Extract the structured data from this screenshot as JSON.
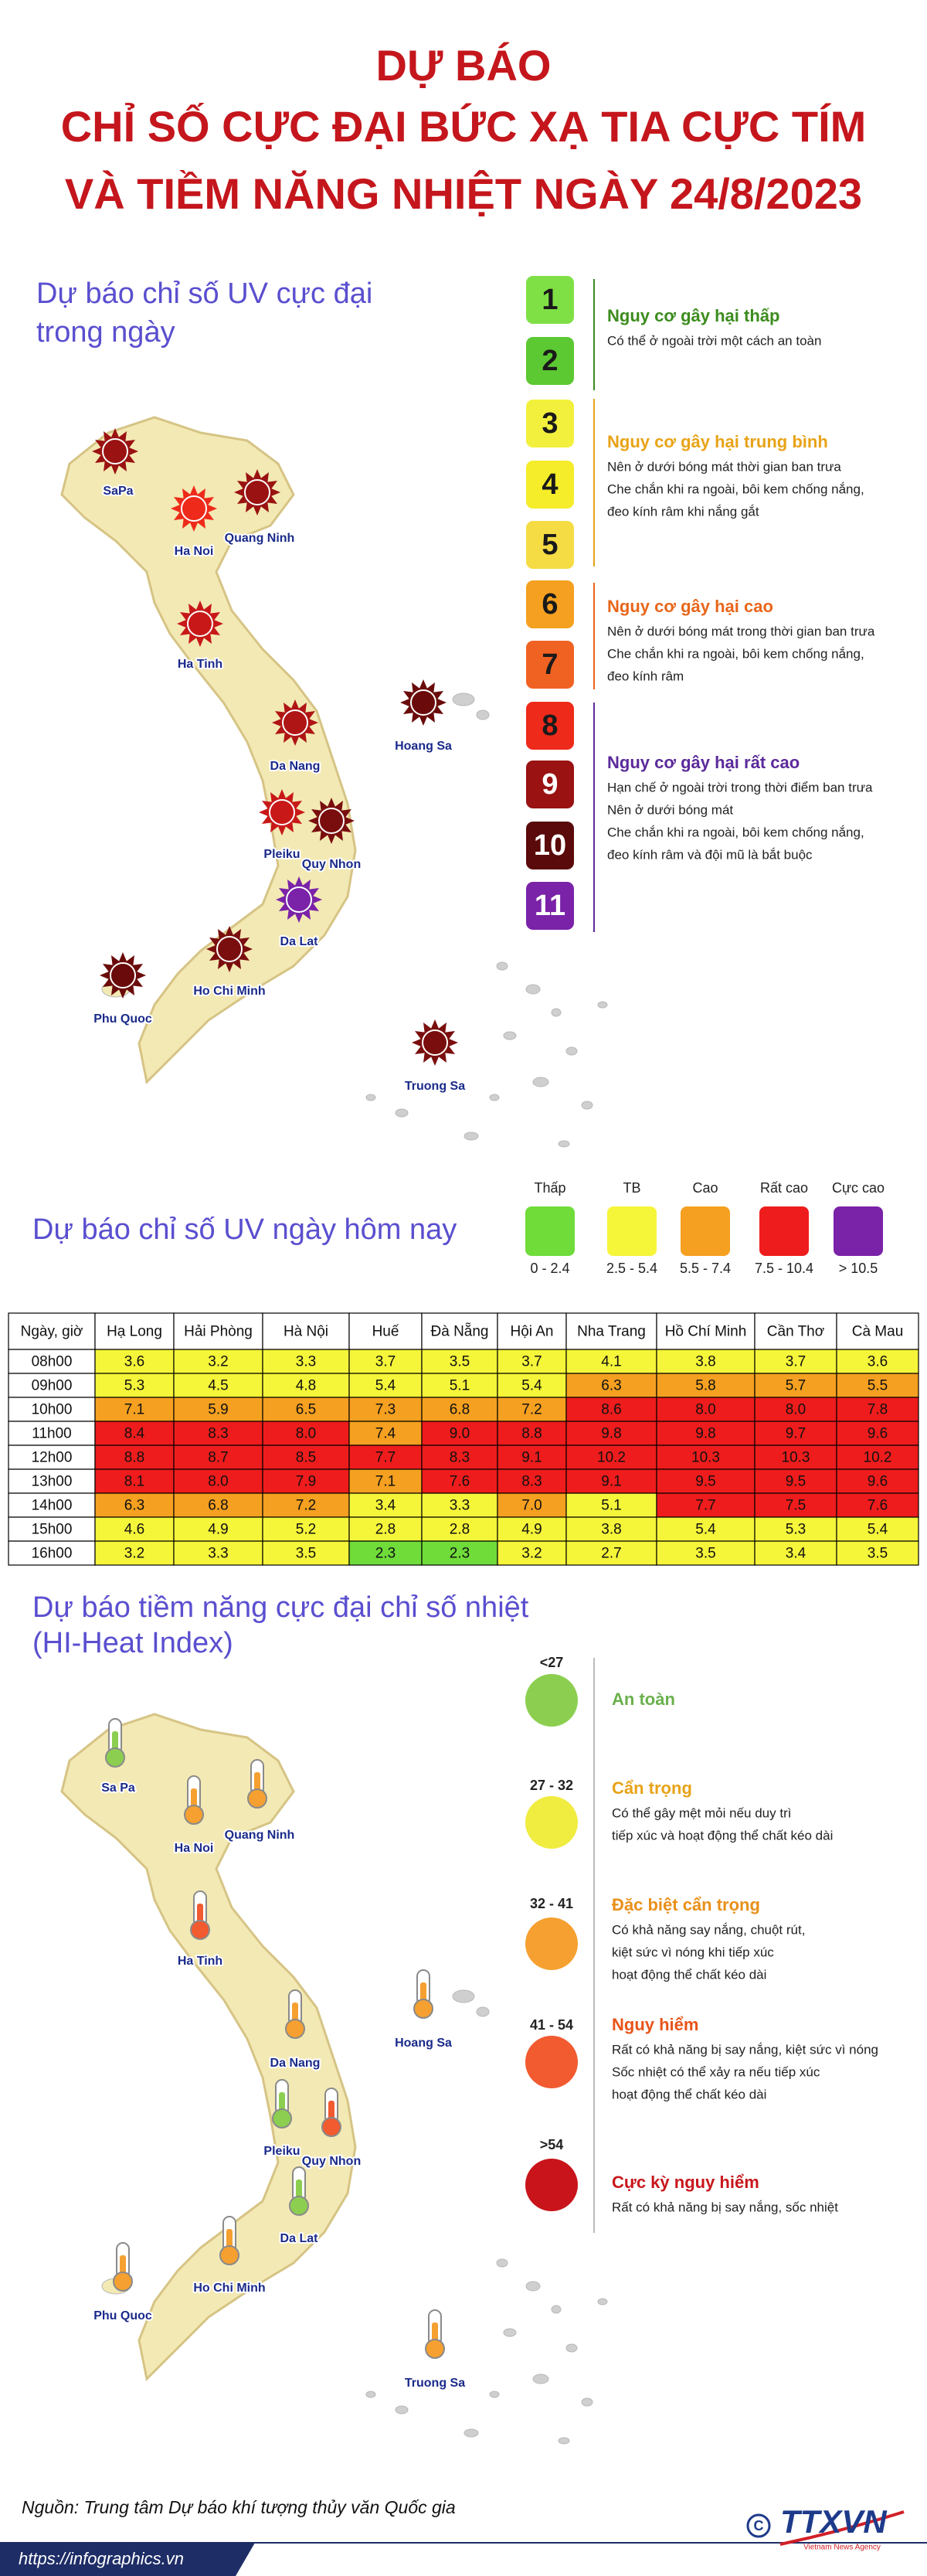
{
  "title_lines": [
    "DỰ BÁO",
    "CHỈ SỐ CỰC ĐẠI BỨC XẠ TIA CỰC TÍM",
    "VÀ TIỀM NĂNG NHIỆT NGÀY 24/8/2023"
  ],
  "uv_max": {
    "title_lines": [
      "Dự báo chỉ số UV cực đại",
      "trong ngày"
    ],
    "levels": [
      {
        "value": 1,
        "color": "#7fe045",
        "text_color": "#1a1a1a"
      },
      {
        "value": 2,
        "color": "#5cc832",
        "text_color": "#1a1a1a"
      },
      {
        "value": 3,
        "color": "#f2f03c",
        "text_color": "#1a1a1a"
      },
      {
        "value": 4,
        "color": "#f5ec2a",
        "text_color": "#1a1a1a"
      },
      {
        "value": 5,
        "color": "#f5dc44",
        "text_color": "#1a1a1a"
      },
      {
        "value": 6,
        "color": "#f5a020",
        "text_color": "#1a1a1a"
      },
      {
        "value": 7,
        "color": "#f06222",
        "text_color": "#1a1a1a"
      },
      {
        "value": 8,
        "color": "#ee2a1a",
        "text_color": "#1a1a1a"
      },
      {
        "value": 9,
        "color": "#9a1212",
        "text_color": "#ffffff"
      },
      {
        "value": 10,
        "color": "#5a0a0a",
        "text_color": "#ffffff"
      },
      {
        "value": 11,
        "color": "#7a22a8",
        "text_color": "#ffffff"
      }
    ],
    "groups": [
      {
        "title": "Nguy cơ gây hại thấp",
        "color": "#3c8c1e",
        "lines": [
          "Có thể ở ngoài trời một cách an toàn"
        ]
      },
      {
        "title": "Nguy cơ gây hại trung bình",
        "color": "#e8a317",
        "lines": [
          "Nên ở dưới bóng mát thời gian ban trưa",
          "Che chắn khi ra ngoài, bôi kem chống nắng,",
          "đeo kính râm khi nắng gắt"
        ]
      },
      {
        "title": "Nguy cơ gây hại cao",
        "color": "#e8661a",
        "lines": [
          "Nên ở dưới bóng mát trong thời gian ban trưa",
          "Che chắn khi ra ngoài, bôi kem chống nắng,",
          "đeo kính râm"
        ]
      },
      {
        "title": "Nguy cơ gây hại rất cao",
        "color": "#5b2a9a",
        "lines": [
          "Hạn chế ở ngoài trời trong thời điểm ban trưa",
          "Nên ở dưới bóng mát",
          "Che chắn khi ra ngoài, bôi kem chống nắng,",
          "đeo kính râm và đội mũ là bắt buộc"
        ]
      }
    ],
    "cities": [
      {
        "name": "SaPa",
        "color": "#9a1212"
      },
      {
        "name": "Ha Noi",
        "color": "#ee2a1a"
      },
      {
        "name": "Quang Ninh",
        "color": "#9a1212"
      },
      {
        "name": "Ha Tinh",
        "color": "#c81818"
      },
      {
        "name": "Da Nang",
        "color": "#b01515"
      },
      {
        "name": "Hoang Sa",
        "color": "#6a0a0a"
      },
      {
        "name": "Pleiku",
        "color": "#c81818"
      },
      {
        "name": "Quy Nhon",
        "color": "#7a0e0e"
      },
      {
        "name": "Da Lat",
        "color": "#7a22a8"
      },
      {
        "name": "Ho Chi Minh",
        "color": "#7a0e0e"
      },
      {
        "name": "Phu Quoc",
        "color": "#6a0a0a"
      },
      {
        "name": "Truong Sa",
        "color": "#7a0e0e"
      }
    ]
  },
  "uv_today": {
    "title": "Dự báo chỉ số UV ngày hôm nay",
    "levels": [
      {
        "name": "Thấp",
        "range": "0 - 2.4",
        "color": "#6fdc3a"
      },
      {
        "name": "TB",
        "range": "2.5 - 5.4",
        "color": "#f5f53a"
      },
      {
        "name": "Cao",
        "range": "5.5 - 7.4",
        "color": "#f5a020"
      },
      {
        "name": "Rất cao",
        "range": "7.5 - 10.4",
        "color": "#ee1c1c"
      },
      {
        "name": "Cực cao",
        "range": "> 10.5",
        "color": "#7a22a8"
      }
    ]
  },
  "uv_table": {
    "header": [
      "Ngày, giờ",
      "Hạ Long",
      "Hải Phòng",
      "Hà Nội",
      "Huế",
      "Đà Nẵng",
      "Hội An",
      "Nha Trang",
      "Hồ Chí Minh",
      "Cần Thơ",
      "Cà Mau"
    ],
    "rows": [
      [
        "08h00",
        "3.6",
        "3.2",
        "3.3",
        "3.7",
        "3.5",
        "3.7",
        "4.1",
        "3.8",
        "3.7",
        "3.6"
      ],
      [
        "09h00",
        "5.3",
        "4.5",
        "4.8",
        "5.4",
        "5.1",
        "5.4",
        "6.3",
        "5.8",
        "5.7",
        "5.5"
      ],
      [
        "10h00",
        "7.1",
        "5.9",
        "6.5",
        "7.3",
        "6.8",
        "7.2",
        "8.6",
        "8.0",
        "8.0",
        "7.8"
      ],
      [
        "11h00",
        "8.4",
        "8.3",
        "8.0",
        "7.4",
        "9.0",
        "8.8",
        "9.8",
        "9.8",
        "9.7",
        "9.6"
      ],
      [
        "12h00",
        "8.8",
        "8.7",
        "8.5",
        "7.7",
        "8.3",
        "9.1",
        "10.2",
        "10.3",
        "10.3",
        "10.2"
      ],
      [
        "13h00",
        "8.1",
        "8.0",
        "7.9",
        "7.1",
        "7.6",
        "8.3",
        "9.1",
        "9.5",
        "9.5",
        "9.6"
      ],
      [
        "14h00",
        "6.3",
        "6.8",
        "7.2",
        "3.4",
        "3.3",
        "7.0",
        "5.1",
        "7.7",
        "7.5",
        "7.6"
      ],
      [
        "15h00",
        "4.6",
        "4.9",
        "5.2",
        "2.8",
        "2.8",
        "4.9",
        "3.8",
        "5.4",
        "5.3",
        "5.4"
      ],
      [
        "16h00",
        "3.2",
        "3.3",
        "3.5",
        "2.3",
        "2.3",
        "3.2",
        "2.7",
        "3.5",
        "3.4",
        "3.5"
      ]
    ]
  },
  "heat_index": {
    "title_lines": [
      "Dự báo tiềm năng cực đại chỉ số nhiệt",
      "(HI-Heat Index)"
    ],
    "levels": [
      {
        "range": "<27",
        "name": "An toàn",
        "color": "#8ccf50",
        "text_color": "#6ab04c",
        "lines": []
      },
      {
        "range": "27 - 32",
        "name": "Cẩn trọng",
        "color": "#f0ec40",
        "text_color": "#e8a317",
        "lines": [
          "Có thể gây mệt mỏi nếu duy trì",
          "tiếp xúc và hoạt động thể chất kéo dài"
        ]
      },
      {
        "range": "32 - 41",
        "name": "Đặc biệt cẩn trọng",
        "color": "#f5a030",
        "text_color": "#e8901a",
        "lines": [
          "Có khả năng say nắng, chuột rút,",
          "kiệt sức vì nóng khi tiếp xúc",
          "hoạt động thể chất kéo dài"
        ]
      },
      {
        "range": "41 - 54",
        "name": "Nguy hiểm",
        "color": "#f25a30",
        "text_color": "#e8541a",
        "lines": [
          "Rất có khả năng bị say nắng, kiệt sức vì nóng",
          "Sốc nhiệt có thể xảy ra nếu tiếp xúc",
          "hoạt động thể chất kéo dài"
        ]
      },
      {
        "range": ">54",
        "name": "Cực kỳ nguy hiểm",
        "color": "#c8141a",
        "text_color": "#c8161c",
        "lines": [
          "Rất có khả năng bị say nắng, sốc nhiệt"
        ]
      }
    ],
    "cities": [
      {
        "name": "Sa Pa",
        "color": "#8ccf50"
      },
      {
        "name": "Ha Noi",
        "color": "#f5a030"
      },
      {
        "name": "Quang Ninh",
        "color": "#f5a030"
      },
      {
        "name": "Ha Tinh",
        "color": "#f25a30"
      },
      {
        "name": "Da Nang",
        "color": "#f5a030"
      },
      {
        "name": "Hoang Sa",
        "color": "#f5a030"
      },
      {
        "name": "Pleiku",
        "color": "#8ccf50"
      },
      {
        "name": "Quy Nhon",
        "color": "#f25a30"
      },
      {
        "name": "Da Lat",
        "color": "#8ccf50"
      },
      {
        "name": "Ho Chi Minh",
        "color": "#f5a030"
      },
      {
        "name": "Phu Quoc",
        "color": "#f5a030"
      },
      {
        "name": "Truong Sa",
        "color": "#f5a030"
      }
    ]
  },
  "footer": {
    "source": "Nguồn: Trung tâm Dự báo khí tượng thủy văn Quốc gia",
    "url": "https://infographics.vn",
    "logo": "TTXVN",
    "logo_sub": "Vietnam News Agency"
  }
}
